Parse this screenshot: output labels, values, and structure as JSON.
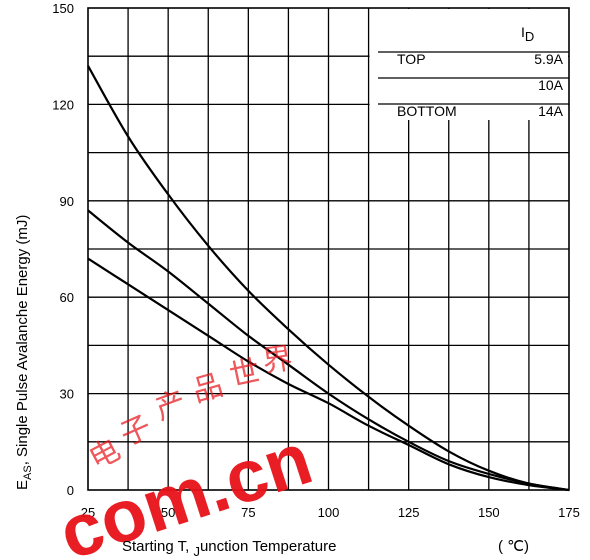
{
  "chart_data": {
    "type": "line",
    "title": "",
    "xlabel_parts": [
      "Starting T",
      ", ",
      "J",
      "unction Temperature"
    ],
    "xlabel_unit": "( ℃)",
    "ylabel_main": "E",
    "ylabel_sub": "AS",
    "ylabel_rest": ", Single Pulse Avalanche Energy (mJ)",
    "xlim": [
      25,
      175
    ],
    "ylim": [
      0,
      150
    ],
    "xticks": [
      25,
      50,
      75,
      100,
      125,
      150,
      175
    ],
    "yticks": [
      0,
      30,
      60,
      90,
      120,
      150
    ],
    "x_minor_step": 12.5,
    "y_minor_step": 15,
    "grid": true,
    "legend": {
      "header_main": "I",
      "header_sub": "D",
      "rows": [
        {
          "label": "TOP",
          "value": "5.9A"
        },
        {
          "label": "",
          "value": "10A"
        },
        {
          "label": "BOTTOM",
          "value": "14A"
        }
      ]
    },
    "series": [
      {
        "x": [
          25,
          37.5,
          50,
          62.5,
          75,
          87.5,
          100,
          112.5,
          125,
          137.5,
          150,
          162.5,
          175
        ],
        "y": [
          132,
          110,
          92,
          76,
          62,
          50,
          39,
          29,
          20,
          12,
          6,
          2,
          0
        ]
      },
      {
        "x": [
          25,
          37.5,
          50,
          62.5,
          75,
          87.5,
          100,
          112.5,
          125,
          137.5,
          150,
          162.5,
          175
        ],
        "y": [
          87,
          77,
          68,
          58,
          48,
          39,
          30,
          22,
          15,
          9,
          5,
          2,
          0
        ]
      },
      {
        "x": [
          25,
          37.5,
          50,
          62.5,
          75,
          87.5,
          100,
          112.5,
          125,
          137.5,
          150,
          162.5,
          175
        ],
        "y": [
          72,
          64,
          56,
          48,
          40,
          33,
          27,
          20,
          14,
          8,
          4,
          1.5,
          0
        ]
      }
    ]
  },
  "watermark": {
    "text": "com.cn",
    "glyphs": [
      "电",
      "子",
      "产",
      "品",
      "世",
      "界"
    ],
    "color": "#e8131a"
  }
}
